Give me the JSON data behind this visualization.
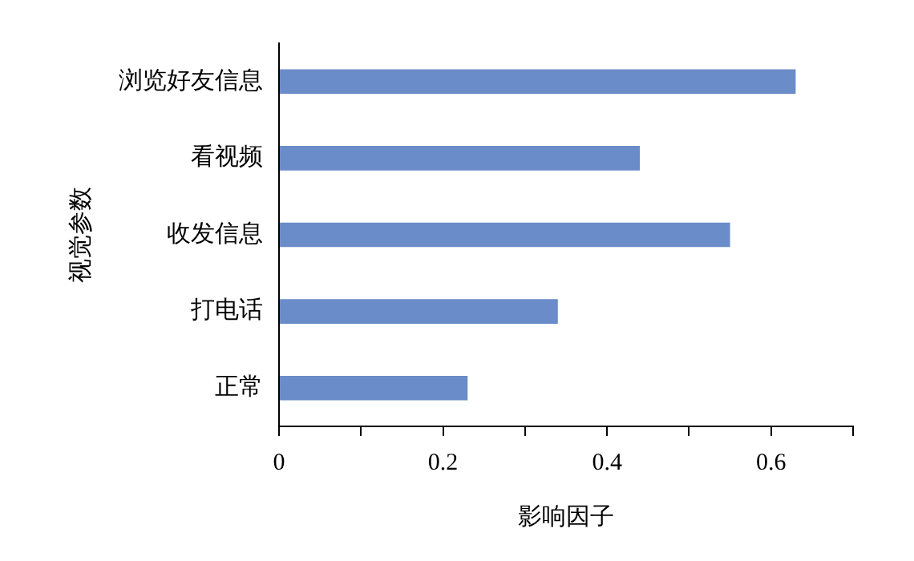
{
  "chart_data": {
    "type": "bar",
    "orientation": "horizontal",
    "xlabel": "影响因子",
    "ylabel": "视觉参数",
    "categories": [
      "浏览好友信息",
      "看视频",
      "收发信息",
      "打电话",
      "正常"
    ],
    "values": [
      0.63,
      0.44,
      0.55,
      0.34,
      0.23
    ],
    "color": "#6a8cc8",
    "xlim": [
      0,
      0.7
    ],
    "xticks": [
      0,
      {
        "value": 0.1,
        "label": null
      },
      0.2,
      {
        "value": 0.3,
        "label": null
      },
      0.4,
      {
        "value": 0.5,
        "label": null
      },
      0.6,
      {
        "value": 0.7,
        "label": null
      }
    ],
    "grid": false,
    "legend": false
  }
}
